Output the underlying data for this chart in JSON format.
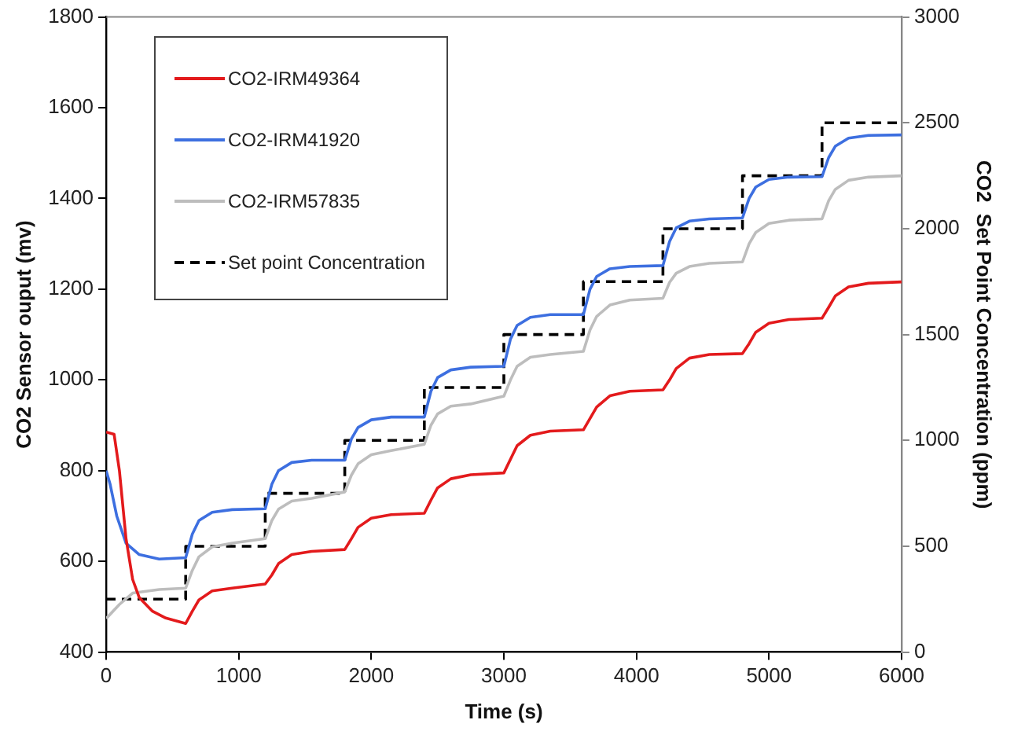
{
  "chart_data": {
    "type": "line",
    "xlabel": "Time (s)",
    "ylabel": "CO2 Sensor ouput (mv)",
    "y2label": "CO2  Set Point Concentration (ppm)",
    "xlim": [
      0,
      6000
    ],
    "xticks": [
      0,
      1000,
      2000,
      3000,
      4000,
      5000,
      6000
    ],
    "ylim": [
      400,
      1800
    ],
    "yticks": [
      400,
      600,
      800,
      1000,
      1200,
      1400,
      1600,
      1800
    ],
    "y2lim": [
      0,
      3000
    ],
    "y2ticks": [
      0,
      500,
      1000,
      1500,
      2000,
      2500,
      3000
    ],
    "grid": false,
    "legend": "top left",
    "marker": "none",
    "series": [
      {
        "name": "CO2-IRM49364",
        "color": "#e31a1c",
        "x": [
          0,
          60,
          100,
          150,
          200,
          250,
          350,
          450,
          600,
          650,
          700,
          800,
          950,
          1200,
          1250,
          1300,
          1400,
          1550,
          1800,
          1850,
          1900,
          2000,
          2150,
          2400,
          2450,
          2500,
          2600,
          2750,
          3000,
          3050,
          3100,
          3200,
          3350,
          3600,
          3650,
          3700,
          3800,
          3950,
          4200,
          4250,
          4300,
          4400,
          4550,
          4800,
          4850,
          4900,
          5000,
          5150,
          5400,
          5450,
          5500,
          5600,
          5750,
          6000
        ],
        "values": [
          885,
          880,
          800,
          650,
          560,
          520,
          490,
          475,
          463,
          490,
          515,
          535,
          541,
          550,
          570,
          595,
          615,
          622,
          626,
          650,
          675,
          695,
          703,
          706,
          735,
          762,
          782,
          791,
          795,
          825,
          855,
          878,
          887,
          890,
          915,
          940,
          965,
          975,
          978,
          1000,
          1025,
          1048,
          1056,
          1058,
          1080,
          1105,
          1125,
          1133,
          1136,
          1160,
          1185,
          1205,
          1213,
          1216
        ]
      },
      {
        "name": "CO2-IRM41920",
        "color": "#3d6fe0",
        "x": [
          0,
          30,
          80,
          150,
          250,
          400,
          600,
          650,
          700,
          800,
          950,
          1200,
          1250,
          1300,
          1400,
          1550,
          1800,
          1850,
          1900,
          2000,
          2150,
          2400,
          2450,
          2500,
          2600,
          2750,
          3000,
          3050,
          3100,
          3200,
          3350,
          3600,
          3650,
          3700,
          3800,
          3950,
          4200,
          4250,
          4300,
          4400,
          4550,
          4800,
          4850,
          4900,
          5000,
          5150,
          5400,
          5450,
          5500,
          5600,
          5750,
          6000
        ],
        "values": [
          800,
          770,
          700,
          640,
          615,
          605,
          608,
          660,
          690,
          708,
          714,
          716,
          770,
          800,
          818,
          823,
          823,
          870,
          895,
          912,
          918,
          918,
          975,
          1005,
          1022,
          1028,
          1030,
          1090,
          1120,
          1138,
          1144,
          1144,
          1200,
          1228,
          1245,
          1250,
          1252,
          1305,
          1335,
          1350,
          1355,
          1357,
          1400,
          1425,
          1442,
          1447,
          1448,
          1490,
          1515,
          1533,
          1539,
          1540
        ]
      },
      {
        "name": "CO2-IRM57835",
        "color": "#bdbdbd",
        "x": [
          0,
          100,
          200,
          400,
          600,
          650,
          700,
          800,
          950,
          1200,
          1250,
          1300,
          1400,
          1550,
          1800,
          1850,
          1900,
          2000,
          2150,
          2400,
          2450,
          2500,
          2600,
          2750,
          3000,
          3050,
          3100,
          3200,
          3350,
          3600,
          3650,
          3700,
          3800,
          3950,
          4200,
          4250,
          4300,
          4400,
          4550,
          4800,
          4850,
          4900,
          5000,
          5150,
          5400,
          5450,
          5500,
          5600,
          5750,
          6000
        ],
        "values": [
          474,
          505,
          530,
          538,
          541,
          580,
          610,
          632,
          640,
          650,
          690,
          715,
          733,
          739,
          753,
          790,
          815,
          835,
          844,
          858,
          900,
          925,
          942,
          947,
          964,
          1000,
          1030,
          1050,
          1056,
          1063,
          1110,
          1140,
          1165,
          1176,
          1180,
          1215,
          1235,
          1250,
          1257,
          1260,
          1300,
          1325,
          1345,
          1352,
          1355,
          1395,
          1420,
          1440,
          1447,
          1450
        ]
      },
      {
        "name": "Set point Concentration",
        "type": "step",
        "axis": "y2",
        "color": "#000000",
        "line_style": "dashed",
        "x": [
          0,
          600,
          1200,
          1800,
          2400,
          3000,
          3600,
          4200,
          4800,
          5400,
          6000
        ],
        "values": [
          250,
          500,
          750,
          1000,
          1250,
          1500,
          1750,
          2000,
          2250,
          2500,
          2500
        ]
      }
    ]
  }
}
